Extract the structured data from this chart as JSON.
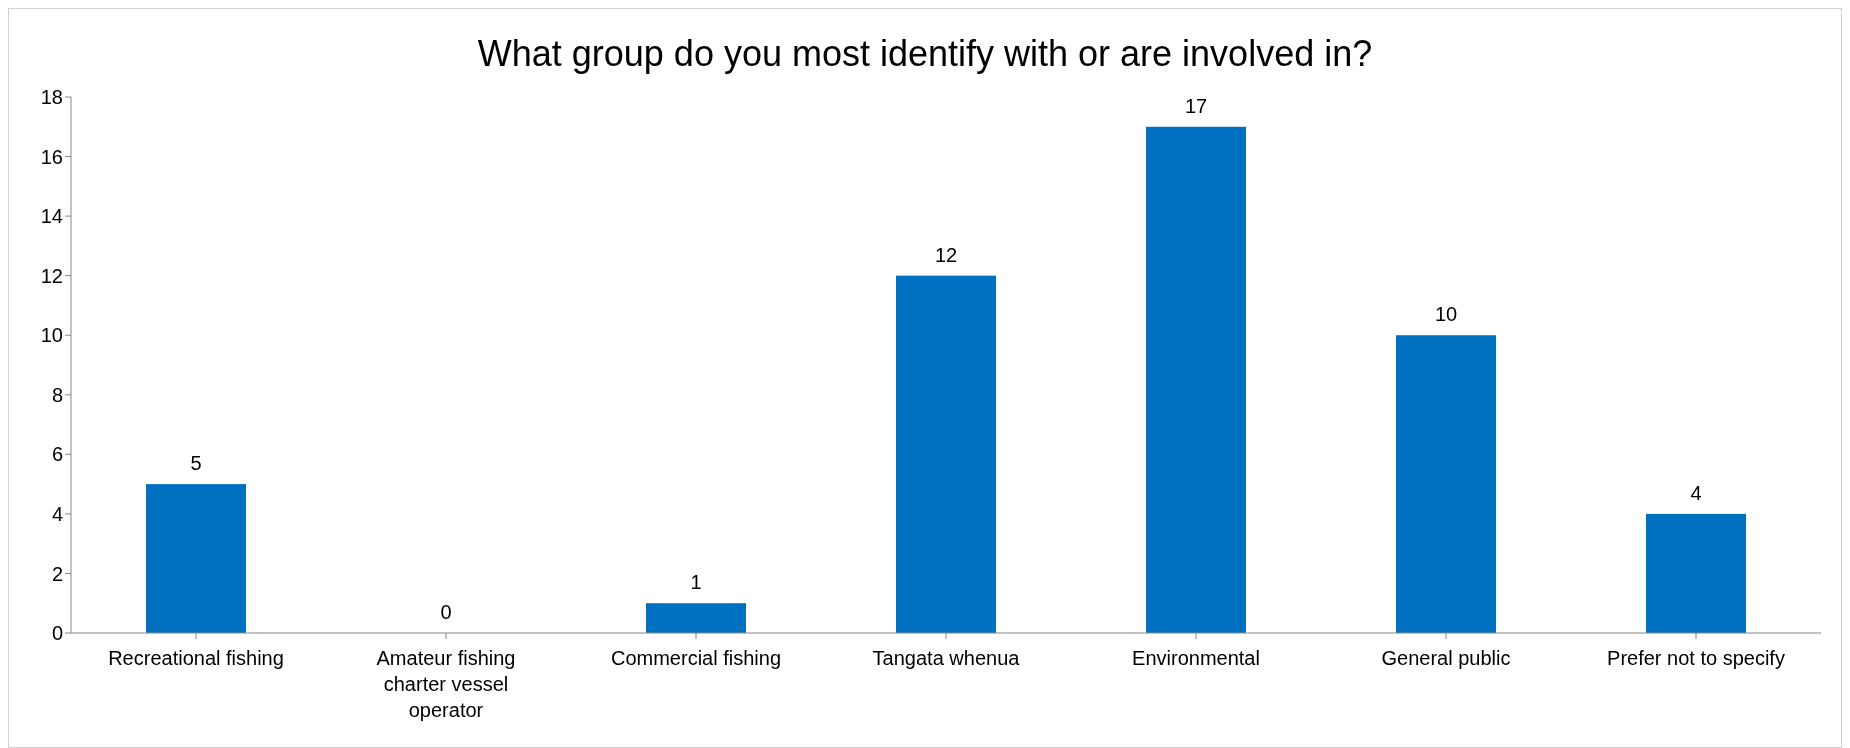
{
  "chart_data": {
    "type": "bar",
    "title": "What group do you most identify with or are involved in?",
    "categories": [
      "Recreational fishing",
      "Amateur fishing charter vessel operator",
      "Commercial fishing",
      "Tangata whenua",
      "Environmental",
      "General public",
      "Prefer not to specify"
    ],
    "values": [
      5,
      0,
      1,
      12,
      17,
      10,
      4
    ],
    "color": "#0070c0",
    "ylim": [
      0,
      18
    ],
    "yticks": [
      0,
      2,
      4,
      6,
      8,
      10,
      12,
      14,
      16,
      18
    ],
    "data_labels": true
  }
}
